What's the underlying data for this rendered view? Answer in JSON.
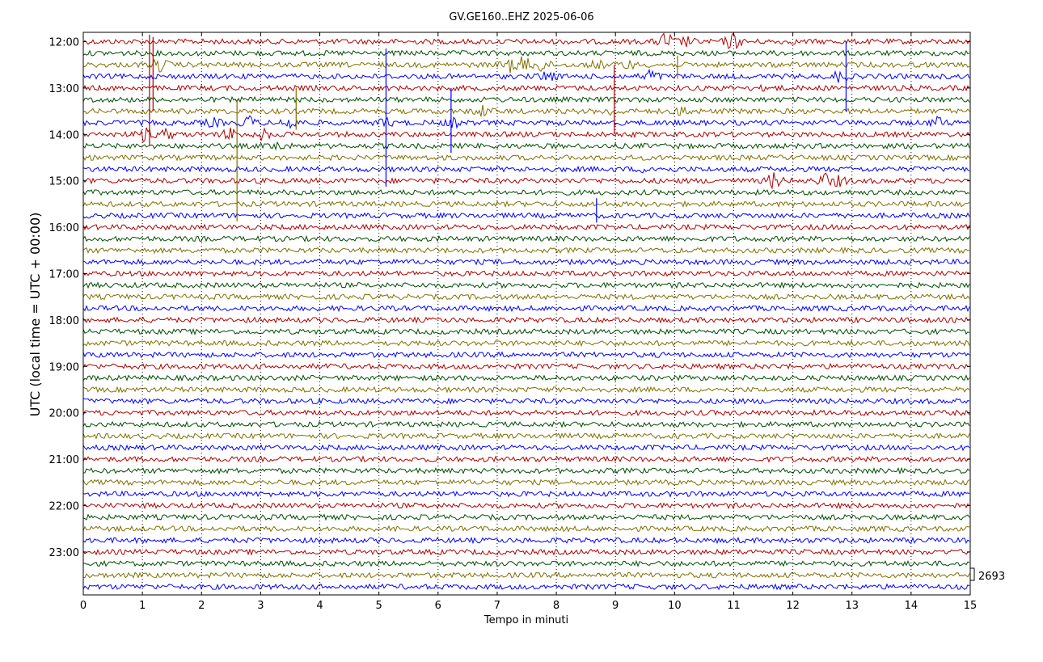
{
  "chart_data": {
    "type": "line",
    "title": "GV.GE160..EHZ 2025-06-06",
    "xlabel": "Tempo in minuti",
    "ylabel": "UTC (local time = UTC + 00:00)",
    "xlim": [
      0,
      15
    ],
    "x_ticks": [
      0,
      1,
      2,
      3,
      4,
      5,
      6,
      7,
      8,
      9,
      10,
      11,
      12,
      13,
      14,
      15
    ],
    "y_tick_labels": [
      "12:00",
      "13:00",
      "14:00",
      "15:00",
      "16:00",
      "17:00",
      "18:00",
      "19:00",
      "20:00",
      "21:00",
      "22:00",
      "23:00"
    ],
    "grid": true,
    "trace_colors": [
      "#b00000",
      "#004d00",
      "#807000",
      "#0000ff"
    ],
    "trace_count": 48,
    "scale_label": "2693",
    "events": [
      {
        "trace": 0,
        "x": 9.85,
        "amp": 3.0
      },
      {
        "trace": 0,
        "x": 10.98,
        "amp": 2.8
      },
      {
        "trace": 0,
        "x": 10.2,
        "amp": 1.4
      },
      {
        "trace": 2,
        "x": 1.3,
        "amp": 2.0
      },
      {
        "trace": 2,
        "x": 7.2,
        "amp": 2.2
      },
      {
        "trace": 2,
        "x": 7.45,
        "amp": 2.4
      },
      {
        "trace": 2,
        "x": 7.75,
        "amp": 2.2
      },
      {
        "trace": 2,
        "x": 8.7,
        "amp": 1.2
      },
      {
        "trace": 2,
        "x": 9.2,
        "amp": 1.2
      },
      {
        "trace": 3,
        "x": 7.85,
        "amp": 1.8
      },
      {
        "trace": 3,
        "x": 9.6,
        "amp": 2.2
      },
      {
        "trace": 3,
        "x": 12.8,
        "amp": 1.8
      },
      {
        "trace": 4,
        "x": 11.6,
        "amp": 0.8
      },
      {
        "trace": 6,
        "x": 6.75,
        "amp": 1.8
      },
      {
        "trace": 6,
        "x": 8.95,
        "amp": 1.1
      },
      {
        "trace": 6,
        "x": 10.15,
        "amp": 1.6
      },
      {
        "trace": 7,
        "x": 2.2,
        "amp": 1.2
      },
      {
        "trace": 7,
        "x": 2.8,
        "amp": 2.0
      },
      {
        "trace": 7,
        "x": 3.5,
        "amp": 2.2
      },
      {
        "trace": 7,
        "x": 5.1,
        "amp": 1.2
      },
      {
        "trace": 7,
        "x": 6.25,
        "amp": 1.2
      },
      {
        "trace": 7,
        "x": 14.45,
        "amp": 1.6
      },
      {
        "trace": 8,
        "x": 1.05,
        "amp": 2.2
      },
      {
        "trace": 8,
        "x": 1.4,
        "amp": 1.4
      },
      {
        "trace": 8,
        "x": 2.5,
        "amp": 2.2
      },
      {
        "trace": 8,
        "x": 3.05,
        "amp": 1.6
      },
      {
        "trace": 9,
        "x": 3.3,
        "amp": 1.4
      },
      {
        "trace": 11,
        "x": 9.55,
        "amp": 0.9
      },
      {
        "trace": 12,
        "x": 11.68,
        "amp": 2.4
      },
      {
        "trace": 12,
        "x": 12.55,
        "amp": 2.2
      },
      {
        "trace": 12,
        "x": 12.8,
        "amp": 1.4
      }
    ],
    "spikes": [
      {
        "trace": 0,
        "x": 1.12,
        "up": 0.6,
        "down": 9.0
      },
      {
        "trace": 0,
        "x": 1.18,
        "up": 0.4,
        "down": 6.0
      },
      {
        "trace": 2,
        "x": 10.05,
        "up": 0.8,
        "down": 1.2
      },
      {
        "trace": 3,
        "x": 5.12,
        "up": 2.4,
        "down": 9.5
      },
      {
        "trace": 3,
        "x": 12.9,
        "up": 3.0,
        "down": 3.0
      },
      {
        "trace": 4,
        "x": 8.98,
        "up": 2.0,
        "down": 4.0
      },
      {
        "trace": 6,
        "x": 2.6,
        "up": 1.0,
        "down": 9.5
      },
      {
        "trace": 6,
        "x": 3.6,
        "up": 2.0,
        "down": 1.6
      },
      {
        "trace": 7,
        "x": 6.22,
        "up": 3.0,
        "down": 2.6
      },
      {
        "trace": 15,
        "x": 8.68,
        "up": 1.5,
        "down": 0.6
      }
    ]
  }
}
